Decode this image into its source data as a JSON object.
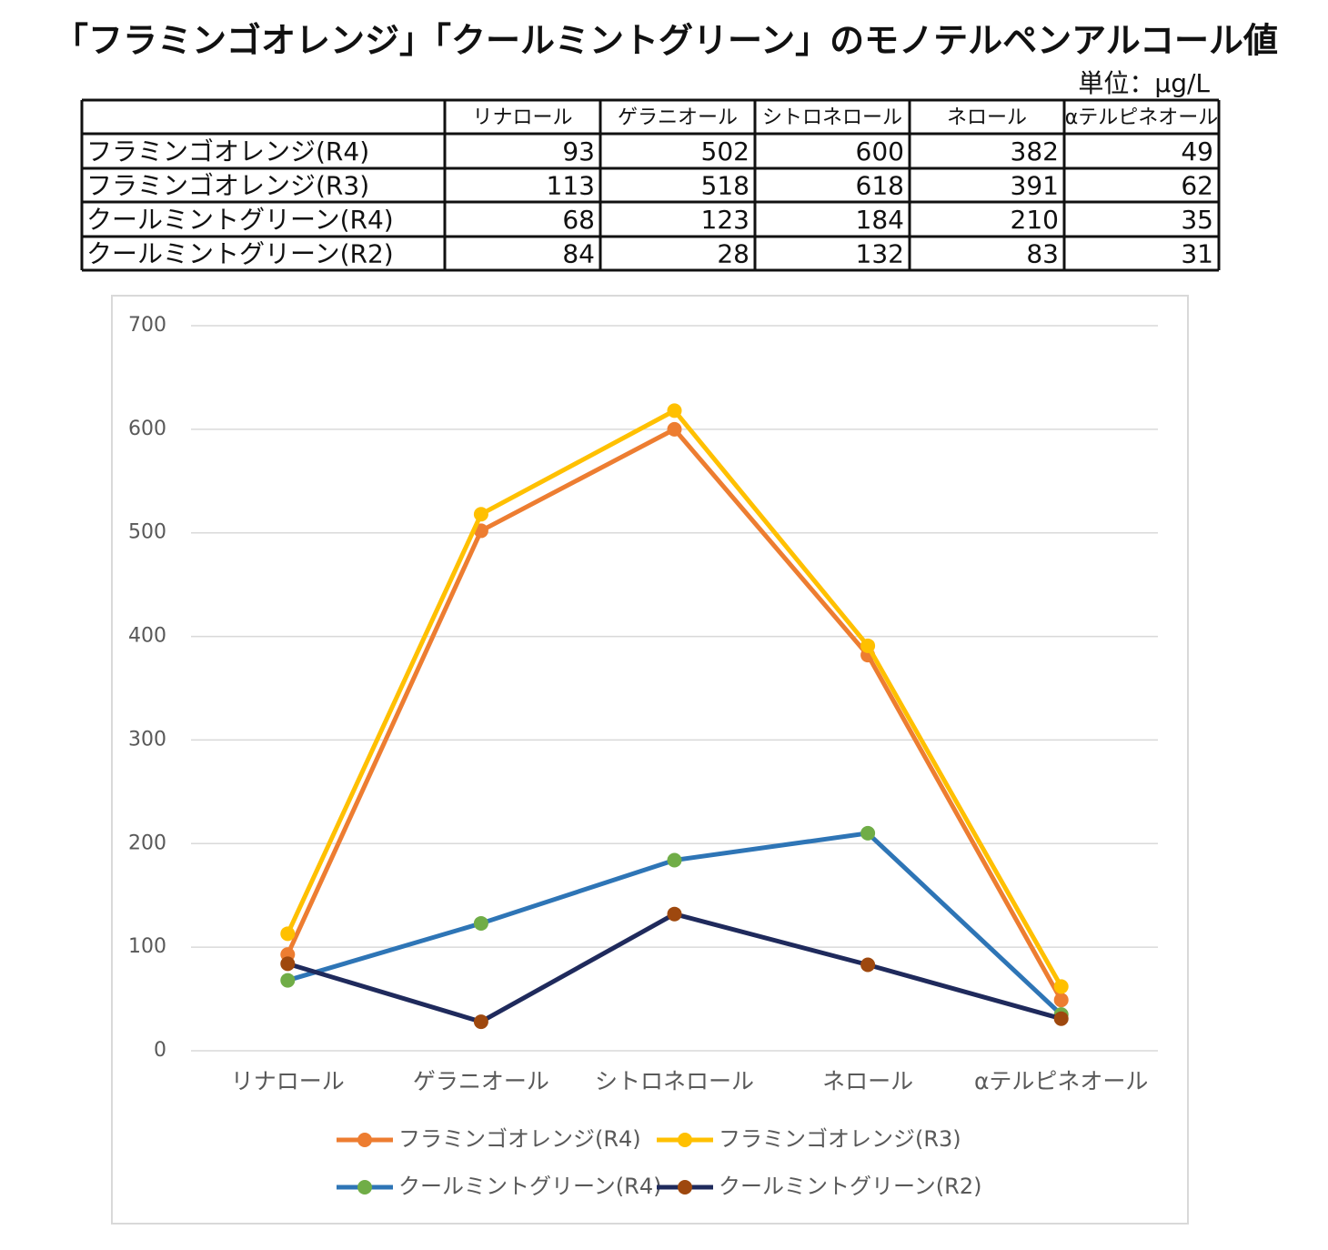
{
  "title": "「フラミンゴオレンジ」「クールミントグリーン」のモノテルペンアルコール値",
  "unit": "単位：μg/L",
  "chart_data": {
    "type": "line",
    "categories": [
      "リナロール",
      "ゲラニオール",
      "シトロネロール",
      "ネロール",
      "αテルピネオール"
    ],
    "series": [
      {
        "name": "フラミンゴオレンジ(R4)",
        "color": "#ed7d31",
        "marker_color": "#ed7d31",
        "values": [
          93,
          502,
          600,
          382,
          49
        ]
      },
      {
        "name": "フラミンゴオレンジ(R3)",
        "color": "#ffc000",
        "marker_color": "#ffc000",
        "values": [
          113,
          518,
          618,
          391,
          62
        ]
      },
      {
        "name": "クールミントグリーン(R4)",
        "color": "#2e75b6",
        "marker_color": "#70ad47",
        "values": [
          68,
          123,
          184,
          210,
          35
        ]
      },
      {
        "name": "クールミントグリーン(R2)",
        "color": "#1f2a5c",
        "marker_color": "#9e480e",
        "values": [
          84,
          28,
          132,
          83,
          31
        ]
      }
    ],
    "ylim": [
      0,
      700
    ],
    "yticks": [
      0,
      100,
      200,
      300,
      400,
      500,
      600,
      700
    ],
    "grid": true,
    "legend": "bottom"
  }
}
